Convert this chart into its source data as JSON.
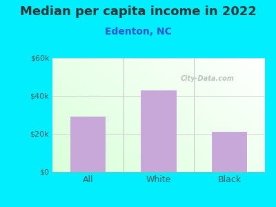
{
  "categories": [
    "All",
    "White",
    "Black"
  ],
  "values": [
    29000,
    43000,
    21000
  ],
  "bar_color": "#c8a8d8",
  "title": "Median per capita income in 2022",
  "subtitle": "Edenton, NC",
  "title_fontsize": 13,
  "subtitle_fontsize": 10,
  "title_color": "#333333",
  "subtitle_color": "#3355cc",
  "outer_bg": "#00eeff",
  "ylim": [
    0,
    60000
  ],
  "yticks": [
    0,
    20000,
    40000,
    60000
  ],
  "ytick_labels": [
    "$0",
    "$20k",
    "$40k",
    "$60k"
  ],
  "tick_color": "#555555",
  "grid_color": "#cccccc",
  "watermark": "City-Data.com",
  "separator_color": "#aaaaaa"
}
